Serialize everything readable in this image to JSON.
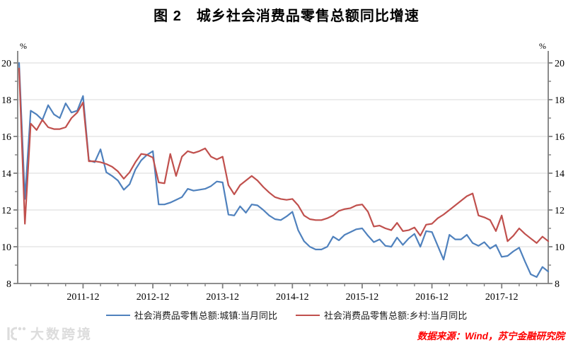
{
  "title": "图 2　城乡社会消费品零售总额同比增速",
  "source_note": "数据来源：Wind，苏宁金融研究院",
  "watermark_text": "大数跨境",
  "colors": {
    "urban_line": "#4f81bd",
    "rural_line": "#c0504d",
    "axis": "#7f7f7f",
    "gridline": "#dadada",
    "source_text": "#fe0000"
  },
  "legend": {
    "urban_label": "社会消费品零售总额:城镇:当月同比",
    "rural_label": "社会消费品零售总额:乡村:当月同比"
  },
  "chart_data": {
    "type": "line",
    "title": "图 2　城乡社会消费品零售总额同比增速",
    "unit_label": "%",
    "y_axis": {
      "min": 8,
      "max": 20,
      "major_ticks": [
        8,
        10,
        12,
        14,
        16,
        18,
        20
      ],
      "minor_ticks": [
        9,
        11,
        13,
        15,
        17,
        19
      ],
      "gridlines": true,
      "labels_both_sides": true
    },
    "x_axis": {
      "monthly_start": "2011-01",
      "monthly_end": "2018-08",
      "tick_labels": [
        "2011-12",
        "2012-12",
        "2013-12",
        "2014-12",
        "2015-12",
        "2016-12",
        "2017-12"
      ],
      "tick_label_indices": [
        11,
        23,
        35,
        47,
        59,
        71,
        83
      ],
      "minor_tick_every_months": 3
    },
    "legend_position": "bottom",
    "series": [
      {
        "name": "社会消费品零售总额:城镇:当月同比",
        "color": "#4f81bd",
        "values": [
          20.0,
          12.6,
          17.4,
          17.2,
          16.9,
          17.7,
          17.2,
          17.0,
          17.8,
          17.3,
          17.4,
          18.2,
          14.7,
          14.6,
          15.3,
          14.05,
          13.85,
          13.6,
          13.1,
          13.4,
          14.2,
          14.7,
          15.0,
          15.2,
          12.3,
          12.3,
          12.4,
          12.55,
          12.7,
          13.15,
          13.05,
          13.1,
          13.15,
          13.3,
          13.55,
          13.5,
          11.75,
          11.7,
          12.2,
          11.85,
          12.3,
          12.25,
          12.0,
          11.7,
          11.5,
          11.45,
          11.65,
          11.9,
          10.9,
          10.3,
          10.0,
          9.85,
          9.85,
          10.0,
          10.55,
          10.35,
          10.65,
          10.8,
          10.95,
          11.0,
          10.6,
          10.25,
          10.4,
          10.05,
          10.0,
          10.5,
          10.1,
          10.45,
          10.7,
          10.0,
          10.85,
          10.8,
          10.05,
          9.3,
          10.65,
          10.4,
          10.4,
          10.65,
          10.2,
          10.05,
          10.25,
          9.9,
          10.1,
          9.45,
          9.5,
          9.75,
          9.95,
          9.2,
          8.5,
          8.35,
          8.9,
          8.65
        ]
      },
      {
        "name": "社会消费品零售总额:乡村:当月同比",
        "color": "#c0504d",
        "values": [
          19.7,
          11.25,
          16.7,
          16.35,
          16.9,
          16.5,
          16.4,
          16.4,
          16.5,
          17.0,
          17.3,
          17.85,
          14.65,
          14.65,
          14.6,
          14.5,
          14.35,
          14.1,
          13.7,
          14.05,
          14.6,
          15.05,
          15.0,
          14.85,
          13.5,
          13.45,
          15.05,
          13.85,
          14.9,
          15.2,
          15.1,
          15.2,
          15.35,
          14.9,
          14.75,
          14.9,
          13.35,
          12.85,
          13.35,
          13.6,
          13.85,
          13.6,
          13.25,
          12.95,
          12.7,
          12.6,
          12.55,
          12.6,
          12.25,
          11.7,
          11.5,
          11.45,
          11.45,
          11.55,
          11.7,
          11.95,
          12.05,
          12.1,
          12.25,
          12.3,
          11.9,
          11.1,
          11.15,
          11.0,
          10.9,
          11.3,
          10.85,
          10.9,
          11.05,
          10.6,
          11.2,
          11.25,
          11.55,
          11.75,
          12.0,
          12.25,
          12.5,
          12.75,
          12.9,
          11.7,
          11.6,
          11.45,
          10.85,
          11.7,
          10.3,
          10.6,
          11.0,
          10.7,
          10.45,
          10.2,
          10.55,
          10.3
        ]
      }
    ]
  }
}
